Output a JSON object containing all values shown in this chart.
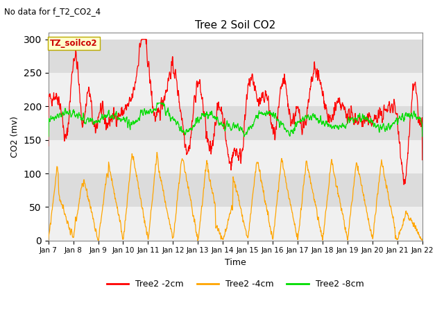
{
  "title": "Tree 2 Soil CO2",
  "xlabel": "Time",
  "ylabel": "CO2 (mv)",
  "suptitle": "No data for f_T2_CO2_4",
  "annotation": "TZ_soilco2",
  "xlim": [
    0,
    15
  ],
  "ylim": [
    0,
    310
  ],
  "yticks": [
    0,
    50,
    100,
    150,
    200,
    250,
    300
  ],
  "xtick_labels": [
    "Jan 7",
    "Jan 8",
    "Jan 9",
    "Jan 10",
    "Jan 11",
    "Jan 12",
    "Jan 13",
    "Jan 14",
    "Jan 15",
    "Jan 16",
    "Jan 17",
    "Jan 18",
    "Jan 19",
    "Jan 20",
    "Jan 21",
    "Jan 22"
  ],
  "colors": {
    "red": "#ff0000",
    "orange": "#ffa500",
    "green": "#00dd00",
    "bg_dark": "#dcdcdc",
    "bg_light": "#f0f0f0"
  },
  "legend": [
    {
      "label": "Tree2 -2cm",
      "color": "#ff0000"
    },
    {
      "label": "Tree2 -4cm",
      "color": "#ffa500"
    },
    {
      "label": "Tree2 -8cm",
      "color": "#00dd00"
    }
  ]
}
